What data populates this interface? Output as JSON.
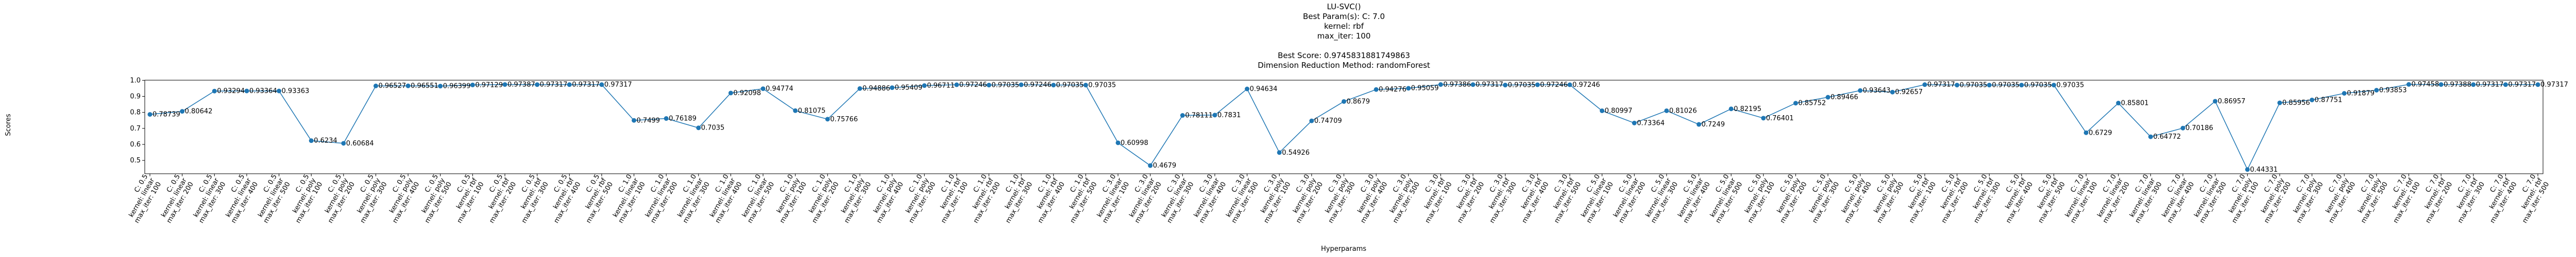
{
  "chart_data": {
    "type": "line",
    "title": [
      "LU-SVC()",
      "Best Param(s): C: 7.0",
      "kernel: rbf",
      "max_iter: 100"
    ],
    "subtitle": [
      "Best Score: 0.9745831881749863",
      "Dimension Reduction Method: randomForest"
    ],
    "x_label": "Hyperparams",
    "y_label": "Scores",
    "color": "#1f77b4",
    "grid": false,
    "ylim": [
      0.417,
      1.001
    ],
    "yticks": [
      0.5,
      0.6,
      0.7,
      0.8,
      0.9,
      {
        "value": 1,
        "label": "1.0"
      }
    ],
    "categories": [
      [
        "C: 0.5",
        "kernel: linear",
        "max_iter: 100"
      ],
      [
        "C: 0.5",
        "kernel: linear",
        "max_iter: 200"
      ],
      [
        "C: 0.5",
        "kernel: linear",
        "max_iter: 300"
      ],
      [
        "C: 0.5",
        "kernel: linear",
        "max_iter: 400"
      ],
      [
        "C: 0.5",
        "kernel: linear",
        "max_iter: 500"
      ],
      [
        "C: 0.5",
        "kernel: poly",
        "max_iter: 100"
      ],
      [
        "C: 0.5",
        "kernel: poly",
        "max_iter: 200"
      ],
      [
        "C: 0.5",
        "kernel: poly",
        "max_iter: 300"
      ],
      [
        "C: 0.5",
        "kernel: poly",
        "max_iter: 400"
      ],
      [
        "C: 0.5",
        "kernel: poly",
        "max_iter: 500"
      ],
      [
        "C: 0.5",
        "kernel: rbf",
        "max_iter: 100"
      ],
      [
        "C: 0.5",
        "kernel: rbf",
        "max_iter: 200"
      ],
      [
        "C: 0.5",
        "kernel: rbf",
        "max_iter: 300"
      ],
      [
        "C: 0.5",
        "kernel: rbf",
        "max_iter: 400"
      ],
      [
        "C: 0.5",
        "kernel: rbf",
        "max_iter: 500"
      ],
      [
        "C: 1.0",
        "kernel: linear",
        "max_iter: 100"
      ],
      [
        "C: 1.0",
        "kernel: linear",
        "max_iter: 200"
      ],
      [
        "C: 1.0",
        "kernel: linear",
        "max_iter: 300"
      ],
      [
        "C: 1.0",
        "kernel: linear",
        "max_iter: 400"
      ],
      [
        "C: 1.0",
        "kernel: linear",
        "max_iter: 500"
      ],
      [
        "C: 1.0",
        "kernel: poly",
        "max_iter: 100"
      ],
      [
        "C: 1.0",
        "kernel: poly",
        "max_iter: 200"
      ],
      [
        "C: 1.0",
        "kernel: poly",
        "max_iter: 300"
      ],
      [
        "C: 1.0",
        "kernel: poly",
        "max_iter: 400"
      ],
      [
        "C: 1.0",
        "kernel: poly",
        "max_iter: 500"
      ],
      [
        "C: 1.0",
        "kernel: rbf",
        "max_iter: 100"
      ],
      [
        "C: 1.0",
        "kernel: rbf",
        "max_iter: 200"
      ],
      [
        "C: 1.0",
        "kernel: rbf",
        "max_iter: 300"
      ],
      [
        "C: 1.0",
        "kernel: rbf",
        "max_iter: 400"
      ],
      [
        "C: 1.0",
        "kernel: rbf",
        "max_iter: 500"
      ],
      [
        "C: 3.0",
        "kernel: linear",
        "max_iter: 100"
      ],
      [
        "C: 3.0",
        "kernel: linear",
        "max_iter: 200"
      ],
      [
        "C: 3.0",
        "kernel: linear",
        "max_iter: 300"
      ],
      [
        "C: 3.0",
        "kernel: linear",
        "max_iter: 400"
      ],
      [
        "C: 3.0",
        "kernel: linear",
        "max_iter: 500"
      ],
      [
        "C: 3.0",
        "kernel: poly",
        "max_iter: 100"
      ],
      [
        "C: 3.0",
        "kernel: poly",
        "max_iter: 200"
      ],
      [
        "C: 3.0",
        "kernel: poly",
        "max_iter: 300"
      ],
      [
        "C: 3.0",
        "kernel: poly",
        "max_iter: 400"
      ],
      [
        "C: 3.0",
        "kernel: poly",
        "max_iter: 500"
      ],
      [
        "C: 3.0",
        "kernel: rbf",
        "max_iter: 100"
      ],
      [
        "C: 3.0",
        "kernel: rbf",
        "max_iter: 200"
      ],
      [
        "C: 3.0",
        "kernel: rbf",
        "max_iter: 300"
      ],
      [
        "C: 3.0",
        "kernel: rbf",
        "max_iter: 400"
      ],
      [
        "C: 3.0",
        "kernel: rbf",
        "max_iter: 500"
      ],
      [
        "C: 5.0",
        "kernel: linear",
        "max_iter: 100"
      ],
      [
        "C: 5.0",
        "kernel: linear",
        "max_iter: 200"
      ],
      [
        "C: 5.0",
        "kernel: linear",
        "max_iter: 300"
      ],
      [
        "C: 5.0",
        "kernel: linear",
        "max_iter: 400"
      ],
      [
        "C: 5.0",
        "kernel: linear",
        "max_iter: 500"
      ],
      [
        "C: 5.0",
        "kernel: poly",
        "max_iter: 100"
      ],
      [
        "C: 5.0",
        "kernel: poly",
        "max_iter: 200"
      ],
      [
        "C: 5.0",
        "kernel: poly",
        "max_iter: 300"
      ],
      [
        "C: 5.0",
        "kernel: poly",
        "max_iter: 400"
      ],
      [
        "C: 5.0",
        "kernel: poly",
        "max_iter: 500"
      ],
      [
        "C: 5.0",
        "kernel: rbf",
        "max_iter: 100"
      ],
      [
        "C: 5.0",
        "kernel: rbf",
        "max_iter: 200"
      ],
      [
        "C: 5.0",
        "kernel: rbf",
        "max_iter: 300"
      ],
      [
        "C: 5.0",
        "kernel: rbf",
        "max_iter: 400"
      ],
      [
        "C: 5.0",
        "kernel: rbf",
        "max_iter: 500"
      ],
      [
        "C: 7.0",
        "kernel: linear",
        "max_iter: 100"
      ],
      [
        "C: 7.0",
        "kernel: linear",
        "max_iter: 200"
      ],
      [
        "C: 7.0",
        "kernel: linear",
        "max_iter: 300"
      ],
      [
        "C: 7.0",
        "kernel: linear",
        "max_iter: 400"
      ],
      [
        "C: 7.0",
        "kernel: linear",
        "max_iter: 500"
      ],
      [
        "C: 7.0",
        "kernel: poly",
        "max_iter: 100"
      ],
      [
        "C: 7.0",
        "kernel: poly",
        "max_iter: 200"
      ],
      [
        "C: 7.0",
        "kernel: poly",
        "max_iter: 300"
      ],
      [
        "C: 7.0",
        "kernel: poly",
        "max_iter: 400"
      ],
      [
        "C: 7.0",
        "kernel: poly",
        "max_iter: 500"
      ],
      [
        "C: 7.0",
        "kernel: rbf",
        "max_iter: 100"
      ],
      [
        "C: 7.0",
        "kernel: rbf",
        "max_iter: 200"
      ],
      [
        "C: 7.0",
        "kernel: rbf",
        "max_iter: 300"
      ],
      [
        "C: 7.0",
        "kernel: rbf",
        "max_iter: 400"
      ],
      [
        "C: 7.0",
        "kernel: rbf",
        "max_iter: 500"
      ]
    ],
    "values": [
      0.78739,
      0.80642,
      0.93294,
      0.93364,
      0.93363,
      0.6234,
      0.60684,
      0.96527,
      0.96551,
      0.96399,
      0.97129,
      0.97387,
      0.97317,
      0.97317,
      0.97317,
      0.7499,
      0.76189,
      0.7035,
      0.92098,
      0.94774,
      0.81075,
      0.75766,
      0.94886,
      0.95409,
      0.96711,
      0.97246,
      0.97035,
      0.97246,
      0.97035,
      0.97035,
      0.60998,
      0.4679,
      0.78111,
      0.7831,
      0.94634,
      0.54926,
      0.74709,
      0.8679,
      0.94276,
      0.95059,
      0.97386,
      0.97317,
      0.97035,
      0.97246,
      0.97246,
      0.80997,
      0.73364,
      0.81026,
      0.7249,
      0.82195,
      0.76401,
      0.85752,
      0.89466,
      0.93643,
      0.92657,
      0.97317,
      0.97035,
      0.97035,
      0.97035,
      0.97035,
      0.6729,
      0.85801,
      0.64772,
      0.70186,
      0.86957,
      0.44331,
      0.85956,
      0.87751,
      0.91879,
      0.93853,
      0.97458,
      0.97388,
      0.97317,
      0.97317,
      0.97317
    ]
  }
}
